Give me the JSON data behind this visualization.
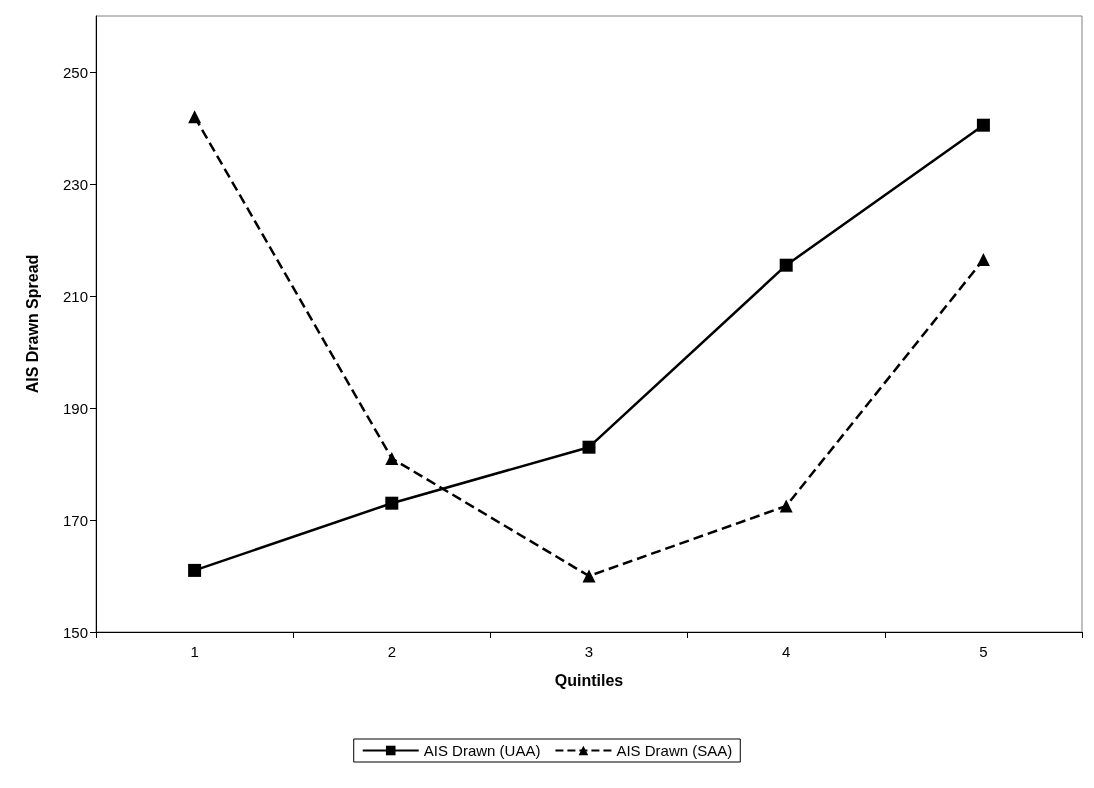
{
  "chart_data": {
    "type": "line",
    "xlabel": "Quintiles",
    "ylabel": "AIS Drawn Spread",
    "categories": [
      "1",
      "2",
      "3",
      "4",
      "5"
    ],
    "series": [
      {
        "name": "AIS Drawn (UAA)",
        "color": "#000000",
        "marker": "square",
        "line_style": "solid",
        "values": [
          161,
          173,
          183,
          215.5,
          240.5
        ]
      },
      {
        "name": "AIS Drawn (SAA)",
        "color": "#000000",
        "marker": "triangle",
        "line_style": "dashed",
        "values": [
          242,
          181,
          160,
          172.5,
          216.5
        ]
      }
    ],
    "ylim": [
      150,
      260
    ],
    "yticks": [
      150,
      170,
      190,
      210,
      230,
      250
    ],
    "grid": false,
    "legend": "bottom"
  }
}
